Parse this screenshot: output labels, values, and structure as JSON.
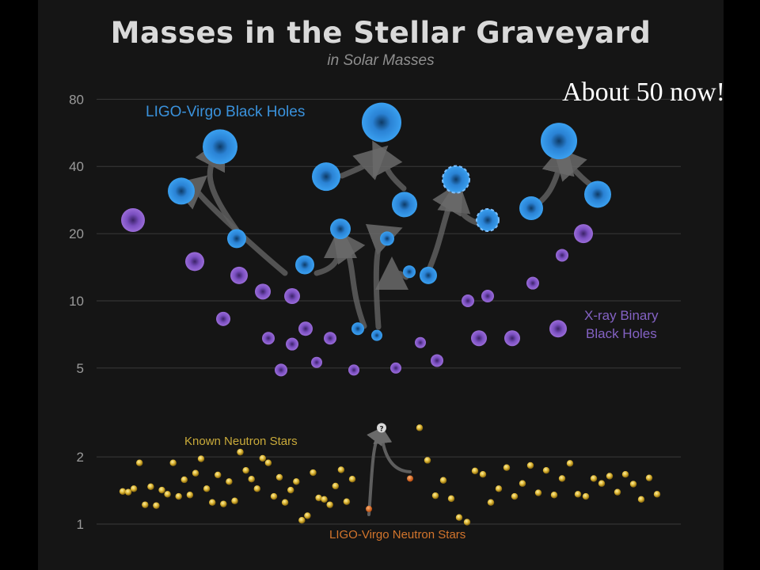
{
  "title": "Masses in the Stellar Graveyard",
  "subtitle": "in Solar Masses",
  "overlay_note": "About 50 now!",
  "colors": {
    "background": "#151515",
    "ligo_black_hole": "#2f8fe0",
    "xray_black_hole": "#8a5cc9",
    "neutron_star": "#e0c040",
    "ligo_neutron_star": "#e07a30",
    "arrow": "#5e5e5e",
    "grid": "#3a3a3a"
  },
  "labels": {
    "ligo_bh": "LIGO-Virgo Black Holes",
    "xray_bh_line1": "X-ray Binary",
    "xray_bh_line2": "Black Holes",
    "neutron_stars": "Known Neutron Stars",
    "ligo_ns": "LIGO-Virgo Neutron Stars",
    "unknown_marker": "?"
  },
  "chart_data": {
    "type": "scatter",
    "y_scale": "log",
    "y_ticks": [
      1,
      2,
      5,
      10,
      20,
      40,
      80
    ],
    "y_tick_labels": [
      "1",
      "2",
      "5",
      "10",
      "20",
      "40",
      "80"
    ],
    "ylim": [
      0.95,
      90
    ],
    "x_axis": "none",
    "grid": true,
    "series": [
      {
        "name": "LIGO-Virgo Black Holes",
        "points": [
          [
            1,
            31
          ],
          [
            2,
            49
          ],
          [
            3,
            19
          ],
          [
            4,
            36
          ],
          [
            5,
            21
          ],
          [
            6,
            63
          ],
          [
            7,
            27
          ],
          [
            8,
            35
          ],
          [
            9,
            23
          ],
          [
            10,
            26
          ],
          [
            11,
            52
          ],
          [
            12,
            30
          ],
          [
            13,
            14.5
          ],
          [
            14,
            7.5
          ],
          [
            15,
            7
          ],
          [
            16,
            19
          ],
          [
            17,
            13.5
          ],
          [
            18,
            13
          ]
        ],
        "mergers": [
          {
            "from": [
              13,
              14.5
            ],
            "via": [
              14,
              7.5
            ],
            "to": [
              3,
              49
            ]
          },
          {
            "from": [
              4,
              36
            ],
            "via": [
              7,
              27
            ],
            "to": [
              6,
              63
            ]
          },
          {
            "from": [
              9,
              23
            ],
            "via": [
              18,
              13
            ],
            "to": [
              8,
              35
            ]
          },
          {
            "from": [
              10,
              26
            ],
            "via": [
              12,
              30
            ],
            "to": [
              11,
              52
            ]
          },
          {
            "from": [
              5,
              21
            ],
            "via": [
              14,
              7.5
            ],
            "to": [
              5,
              21
            ]
          }
        ]
      },
      {
        "name": "X-ray Binary Black Holes",
        "points": [
          [
            1,
            23
          ],
          [
            2,
            15
          ],
          [
            3,
            8.3
          ],
          [
            4,
            13
          ],
          [
            5,
            11
          ],
          [
            6,
            6.8
          ],
          [
            7,
            6.4
          ],
          [
            8,
            10.5
          ],
          [
            9,
            7.5
          ],
          [
            10,
            5.3
          ],
          [
            11,
            6.8
          ],
          [
            12,
            4.9
          ],
          [
            13,
            4.9
          ],
          [
            14,
            5.0
          ],
          [
            15,
            6.5
          ],
          [
            16,
            5.4
          ],
          [
            17,
            10
          ],
          [
            18,
            6.8
          ],
          [
            19,
            10.5
          ],
          [
            20,
            6.8
          ],
          [
            21,
            12
          ],
          [
            22,
            7.5
          ],
          [
            23,
            16
          ],
          [
            24,
            20
          ]
        ]
      },
      {
        "name": "Known Neutron Stars",
        "values": [
          1.4,
          1.39,
          1.44,
          1.88,
          1.22,
          1.47,
          1.21,
          1.42,
          1.36,
          1.88,
          1.33,
          1.58,
          1.35,
          1.69,
          1.96,
          1.44,
          1.25,
          1.66,
          1.23,
          1.55,
          1.27,
          2.1,
          1.74,
          1.59,
          1.44,
          1.97,
          1.88,
          1.33,
          1.62,
          1.25,
          1.42,
          1.55,
          1.04,
          1.09,
          1.7,
          1.31,
          1.29,
          1.22,
          1.48,
          1.75,
          1.26,
          1.59,
          2.7,
          1.93,
          1.34,
          1.57,
          1.3,
          1.07,
          1.02,
          1.73,
          1.67,
          1.25,
          1.44,
          1.79,
          1.33,
          1.52,
          1.83,
          1.38,
          1.74,
          1.35,
          1.6,
          1.87,
          1.36,
          1.33,
          1.6,
          1.52,
          1.64,
          1.39,
          1.67,
          1.51,
          1.29,
          1.61,
          1.36
        ]
      },
      {
        "name": "LIGO-Virgo Neutron Stars",
        "points": [
          [
            1,
            1.17
          ],
          [
            2,
            1.6
          ]
        ],
        "merger_product": 2.7
      }
    ]
  }
}
